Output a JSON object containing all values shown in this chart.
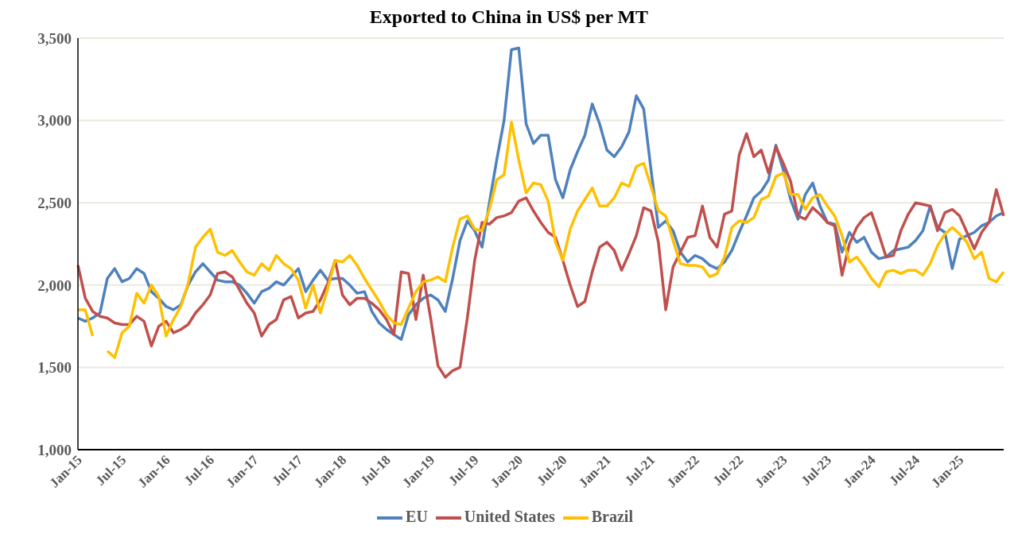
{
  "chart_data": {
    "type": "line",
    "title": "Exported to China in US$ per MT",
    "categories": [
      "Jan-15",
      null,
      null,
      null,
      null,
      null,
      "Jul-15",
      null,
      null,
      null,
      null,
      null,
      "Jan-16",
      null,
      null,
      null,
      null,
      null,
      "Jul-16",
      null,
      null,
      null,
      null,
      null,
      "Jan-17",
      null,
      null,
      null,
      null,
      null,
      "Jul-17",
      null,
      null,
      null,
      null,
      null,
      "Jan-18",
      null,
      null,
      null,
      null,
      null,
      "Jul-18",
      null,
      null,
      null,
      null,
      null,
      "Jan-19",
      null,
      null,
      null,
      null,
      null,
      "Jul-19",
      null,
      null,
      null,
      null,
      null,
      "Jan-20",
      null,
      null,
      null,
      null,
      null,
      "Jul-20",
      null,
      null,
      null,
      null,
      null,
      "Jan-21",
      null,
      null,
      null,
      null,
      null,
      "Jul-21",
      null,
      null,
      null,
      null,
      null,
      "Jan-22",
      null,
      null,
      null,
      null,
      null,
      "Jul-22",
      null,
      null,
      null,
      null,
      null,
      "Jan-23",
      null,
      null,
      null,
      null,
      null,
      "Jul-23",
      null,
      null,
      null,
      null,
      null,
      "Jan-24",
      null,
      null,
      null,
      null,
      null,
      "Jul-24",
      null,
      null,
      null,
      null,
      null,
      "Jan-25",
      null,
      null,
      null,
      null,
      null,
      null
    ],
    "series": [
      {
        "name": "EU",
        "color": "#4f81bd",
        "values": [
          1800,
          1780,
          1800,
          1830,
          2040,
          2100,
          2020,
          2040,
          2100,
          2070,
          1960,
          1920,
          1870,
          1850,
          1880,
          2000,
          2080,
          2130,
          2080,
          2030,
          2020,
          2020,
          2000,
          1950,
          1890,
          1960,
          1980,
          2020,
          2000,
          2050,
          2100,
          1960,
          2030,
          2090,
          2030,
          2040,
          2040,
          2000,
          1950,
          1960,
          1840,
          1770,
          1730,
          1700,
          1670,
          1820,
          1880,
          1920,
          1940,
          1910,
          1840,
          2040,
          2270,
          2390,
          2330,
          2230,
          2500,
          2760,
          3000,
          3430,
          3440,
          2980,
          2860,
          2910,
          2910,
          2640,
          2530,
          2700,
          2810,
          2910,
          3100,
          2980,
          2820,
          2780,
          2840,
          2930,
          3150,
          3070,
          2700,
          2350,
          2390,
          2330,
          2200,
          2140,
          2180,
          2160,
          2120,
          2100,
          2140,
          2210,
          2320,
          2420,
          2530,
          2570,
          2640,
          2850,
          2700,
          2520,
          2400,
          2550,
          2620,
          2480,
          2380,
          2370,
          2200,
          2320,
          2260,
          2290,
          2200,
          2160,
          2170,
          2210,
          2220,
          2230,
          2270,
          2330,
          2480,
          2350,
          2320,
          2100,
          2280,
          2300,
          2320,
          2360,
          2380,
          2420,
          2440
        ]
      },
      {
        "name": "United States",
        "color": "#c0504d",
        "values": [
          2120,
          1920,
          1840,
          1810,
          1800,
          1770,
          1760,
          1760,
          1810,
          1780,
          1630,
          1750,
          1780,
          1710,
          1730,
          1760,
          1830,
          1880,
          1940,
          2070,
          2080,
          2050,
          1970,
          1890,
          1830,
          1690,
          1760,
          1790,
          1910,
          1930,
          1800,
          1830,
          1840,
          1910,
          2010,
          2150,
          1940,
          1880,
          1920,
          1920,
          1890,
          1850,
          1790,
          1700,
          2080,
          2070,
          1790,
          2060,
          1800,
          1510,
          1440,
          1480,
          1500,
          1800,
          2150,
          2380,
          2370,
          2410,
          2420,
          2440,
          2510,
          2530,
          2450,
          2380,
          2320,
          2290,
          2150,
          2000,
          1870,
          1900,
          2080,
          2230,
          2260,
          2210,
          2090,
          2190,
          2300,
          2470,
          2450,
          2260,
          1850,
          2110,
          2200,
          2290,
          2300,
          2480,
          2290,
          2230,
          2430,
          2450,
          2790,
          2920,
          2780,
          2820,
          2680,
          2840,
          2740,
          2630,
          2420,
          2400,
          2470,
          2430,
          2380,
          2360,
          2060,
          2250,
          2350,
          2410,
          2440,
          2310,
          2170,
          2180,
          2330,
          2430,
          2500,
          2490,
          2480,
          2330,
          2440,
          2460,
          2420,
          2320,
          2220,
          2320,
          2380,
          2580,
          2420
        ]
      },
      {
        "name": "Brazil",
        "color": "#ffc000",
        "values": [
          1850,
          1850,
          1690,
          null,
          1600,
          1560,
          1710,
          1750,
          1950,
          1890,
          2000,
          1930,
          1690,
          1790,
          1870,
          2010,
          2230,
          2290,
          2340,
          2200,
          2180,
          2210,
          2140,
          2080,
          2060,
          2130,
          2090,
          2180,
          2130,
          2100,
          2030,
          1860,
          2000,
          1830,
          1980,
          2150,
          2140,
          2180,
          2120,
          2040,
          1970,
          1900,
          1820,
          1770,
          1760,
          1860,
          1960,
          2020,
          2030,
          2050,
          2020,
          2230,
          2400,
          2420,
          2340,
          2330,
          2460,
          2640,
          2670,
          2990,
          2760,
          2560,
          2620,
          2610,
          2510,
          2260,
          2150,
          2340,
          2450,
          2520,
          2590,
          2480,
          2480,
          2530,
          2620,
          2600,
          2720,
          2740,
          2600,
          2450,
          2420,
          2270,
          2130,
          2120,
          2120,
          2110,
          2050,
          2070,
          2170,
          2350,
          2390,
          2380,
          2410,
          2520,
          2540,
          2660,
          2680,
          2550,
          2550,
          2460,
          2530,
          2550,
          2480,
          2420,
          2300,
          2140,
          2170,
          2110,
          2040,
          1990,
          2080,
          2090,
          2070,
          2090,
          2090,
          2060,
          2130,
          2240,
          2310,
          2350,
          2310,
          2260,
          2160,
          2200,
          2040,
          2020,
          2080
        ]
      }
    ],
    "ylim": [
      1000,
      3500
    ],
    "yticks": [
      {
        "value": 1000,
        "label": "1,000"
      },
      {
        "value": 1500,
        "label": "1,500"
      },
      {
        "value": 2000,
        "label": "2,000"
      },
      {
        "value": 2500,
        "label": "2,500"
      },
      {
        "value": 3000,
        "label": "3,000"
      },
      {
        "value": 3500,
        "label": "3,500"
      }
    ],
    "grid": "y",
    "legend": "bottom",
    "marker": "none",
    "line_style": "solid"
  }
}
